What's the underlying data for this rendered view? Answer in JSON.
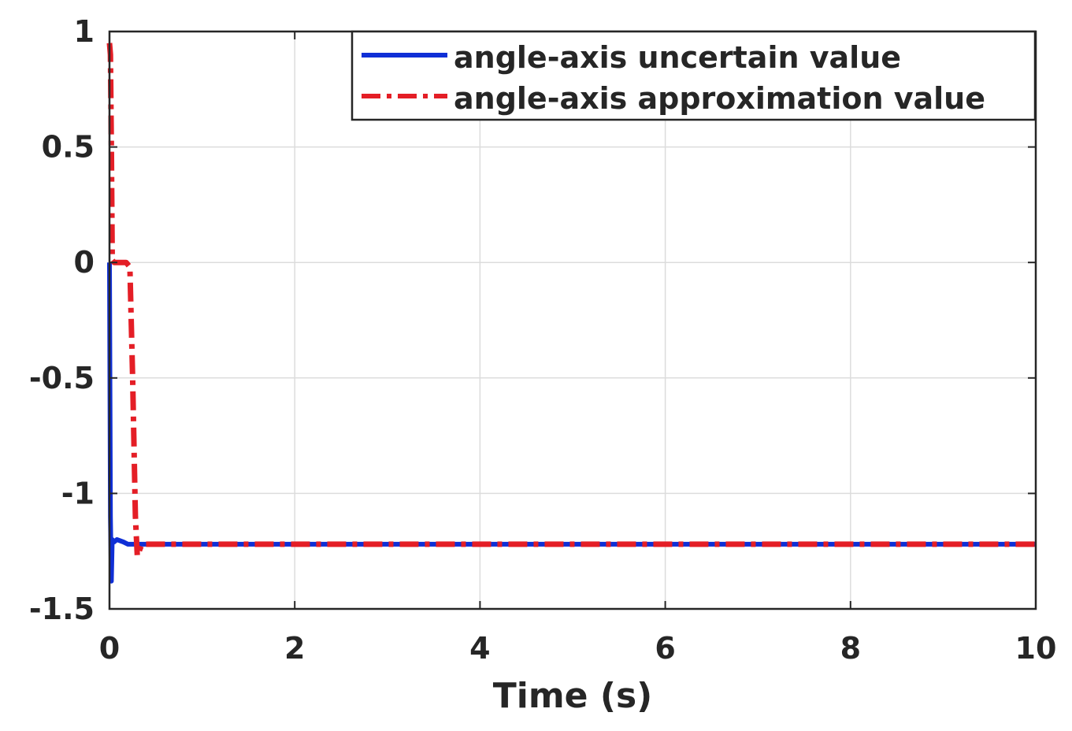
{
  "chart_data": {
    "type": "line",
    "title": "",
    "xlabel": "Time (s)",
    "ylabel": "",
    "xlim": [
      0,
      10
    ],
    "ylim": [
      -1.5,
      1
    ],
    "grid": true,
    "legend_position": "top-right",
    "x_ticks": [
      {
        "value": 0,
        "label": "0"
      },
      {
        "value": 2,
        "label": "2"
      },
      {
        "value": 4,
        "label": "4"
      },
      {
        "value": 6,
        "label": "6"
      },
      {
        "value": 8,
        "label": "8"
      },
      {
        "value": 10,
        "label": "10"
      }
    ],
    "y_ticks": [
      {
        "value": 1,
        "label": "1"
      },
      {
        "value": 0.5,
        "label": "0.5"
      },
      {
        "value": 0,
        "label": "0"
      },
      {
        "value": -0.5,
        "label": "-0.5"
      },
      {
        "value": -1,
        "label": "-1"
      },
      {
        "value": -1.5,
        "label": "-1.5"
      }
    ],
    "series": [
      {
        "name": "angle-axis uncertain value",
        "color": "#0f2fd6",
        "line_style": "solid",
        "x": [
          0,
          0.01,
          0.02,
          0.03,
          0.05,
          0.08,
          0.15,
          0.2,
          0.3,
          1,
          2,
          4,
          6,
          8,
          10
        ],
        "y": [
          0,
          -1.1,
          -1.38,
          -1.2,
          -1.21,
          -1.2,
          -1.21,
          -1.22,
          -1.22,
          -1.22,
          -1.22,
          -1.22,
          -1.22,
          -1.22,
          -1.22
        ]
      },
      {
        "name": "angle-axis approximation value",
        "color": "#e41e26",
        "line_style": "dashdot",
        "x": [
          0,
          0.01,
          0.02,
          0.03,
          0.05,
          0.1,
          0.18,
          0.22,
          0.25,
          0.28,
          0.3,
          0.32,
          0.35,
          0.4,
          1,
          2,
          4,
          6,
          8,
          10
        ],
        "y": [
          0.95,
          0.9,
          0.5,
          0.01,
          0,
          0,
          0,
          -0.02,
          -0.5,
          -1.1,
          -1.27,
          -1.25,
          -1.22,
          -1.22,
          -1.22,
          -1.22,
          -1.22,
          -1.22,
          -1.22,
          -1.22
        ]
      }
    ]
  }
}
